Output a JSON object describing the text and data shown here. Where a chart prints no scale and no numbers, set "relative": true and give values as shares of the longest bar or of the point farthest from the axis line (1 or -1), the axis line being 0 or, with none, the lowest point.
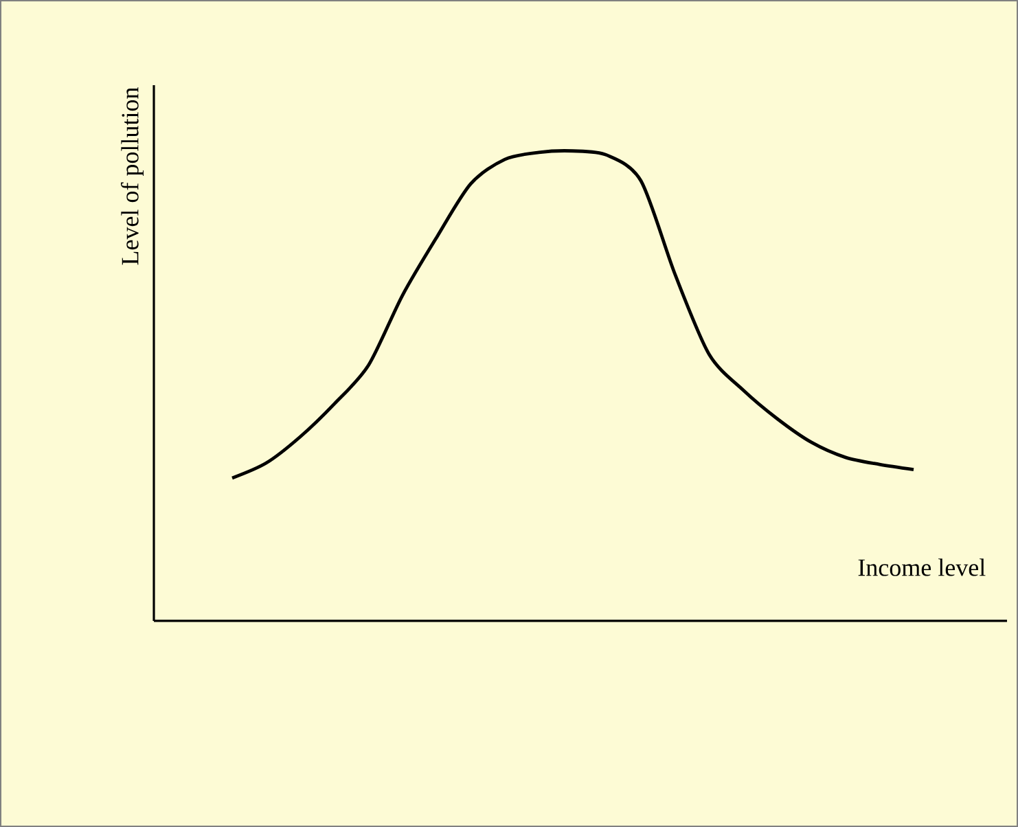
{
  "chart_data": {
    "type": "line",
    "xlabel": "Income level",
    "ylabel": "Level of pollution",
    "relative": true,
    "color": "#000000",
    "categories": [
      null,
      null,
      null,
      null,
      null,
      null,
      null,
      null,
      null,
      null,
      null,
      null,
      null,
      null,
      null,
      null,
      null,
      null,
      null,
      null,
      null
    ],
    "values": [
      0.304,
      0.336,
      0.392,
      0.462,
      0.544,
      0.693,
      0.816,
      0.93,
      0.982,
      0.997,
      1.0,
      0.991,
      0.936,
      0.737,
      0.567,
      0.491,
      0.43,
      0.38,
      0.348,
      0.333,
      0.322
    ]
  }
}
